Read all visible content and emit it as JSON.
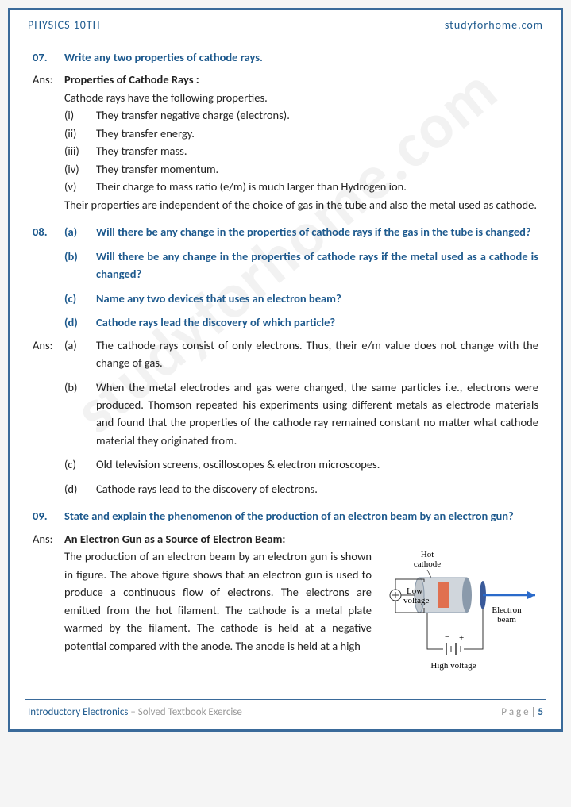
{
  "header": {
    "left": "PHYSICS 10TH",
    "right": "studyforhome.com"
  },
  "watermark": "studyforhome.com",
  "q07": {
    "num": "07.",
    "question": "Write any two properties of cathode rays.",
    "ans_label": "Ans:",
    "heading": "Properties of Cathode Rays :",
    "intro": "Cathode rays have the following properties.",
    "items": [
      {
        "n": "(i)",
        "t": "They transfer negative charge (electrons)."
      },
      {
        "n": "(ii)",
        "t": "They transfer energy."
      },
      {
        "n": "(iii)",
        "t": "They transfer mass."
      },
      {
        "n": "(iv)",
        "t": "They transfer momentum."
      },
      {
        "n": "(v)",
        "t": "Their charge to mass ratio (e/m) is much larger than Hydrogen ion."
      }
    ],
    "tail": "Their properties are independent of the choice of gas in the tube and also the metal used as cathode."
  },
  "q08": {
    "num": "08.",
    "parts": [
      {
        "n": "(a)",
        "t": "Will there be any change in the properties of cathode rays if the gas in the tube is changed?"
      },
      {
        "n": "(b)",
        "t": "Will there be any change in the properties of cathode rays if the metal used as a cathode is changed?"
      },
      {
        "n": "(c)",
        "t": "Name any two devices that uses an electron beam?"
      },
      {
        "n": "(d)",
        "t": "Cathode rays lead the discovery of which particle?"
      }
    ],
    "ans_label": "Ans:",
    "answers": [
      {
        "n": "(a)",
        "t": "The cathode rays consist of only electrons. Thus, their e/m value does not change with the change of gas."
      },
      {
        "n": "(b)",
        "t": "When the metal electrodes and gas were changed, the same particles i.e., electrons were produced. Thomson repeated his experiments using different metals as electrode materials and found that the properties of the cathode ray remained constant no matter what cathode material they originated from."
      },
      {
        "n": "(c)",
        "t": "Old television screens, oscilloscopes & electron microscopes."
      },
      {
        "n": "(d)",
        "t": "Cathode rays lead to the discovery of electrons."
      }
    ]
  },
  "q09": {
    "num": "09.",
    "question": "State and explain the phenomenon of the production of an electron beam by an electron gun?",
    "ans_label": "Ans:",
    "heading": "An Electron Gun as a Source of Electron Beam:",
    "body": "The production of an electron beam by an electron gun is shown in figure. The above figure shows that an electron gun is used to produce a continuous flow of electrons. The electrons are emitted from the hot filament. The cathode is a metal plate warmed by the filament. The cathode is held at a negative potential compared with the anode. The anode is held at a high",
    "diagram": {
      "hot_cathode": "Hot\ncathode",
      "low_voltage": "Low\nvoltage",
      "electron_beam": "Electron\nbeam",
      "high_voltage": "High voltage",
      "colors": {
        "cylinder": "#8a9aab",
        "cap": "#6b7a8a",
        "filament": "#e07050",
        "anode": "#3a5a9a",
        "arrow": "#2a6aca",
        "wire": "#333"
      }
    }
  },
  "footer": {
    "chapter": "Introductory Electronics",
    "sub": " – Solved Textbook Exercise",
    "page_label": "P a g e | ",
    "page_num": "5"
  }
}
